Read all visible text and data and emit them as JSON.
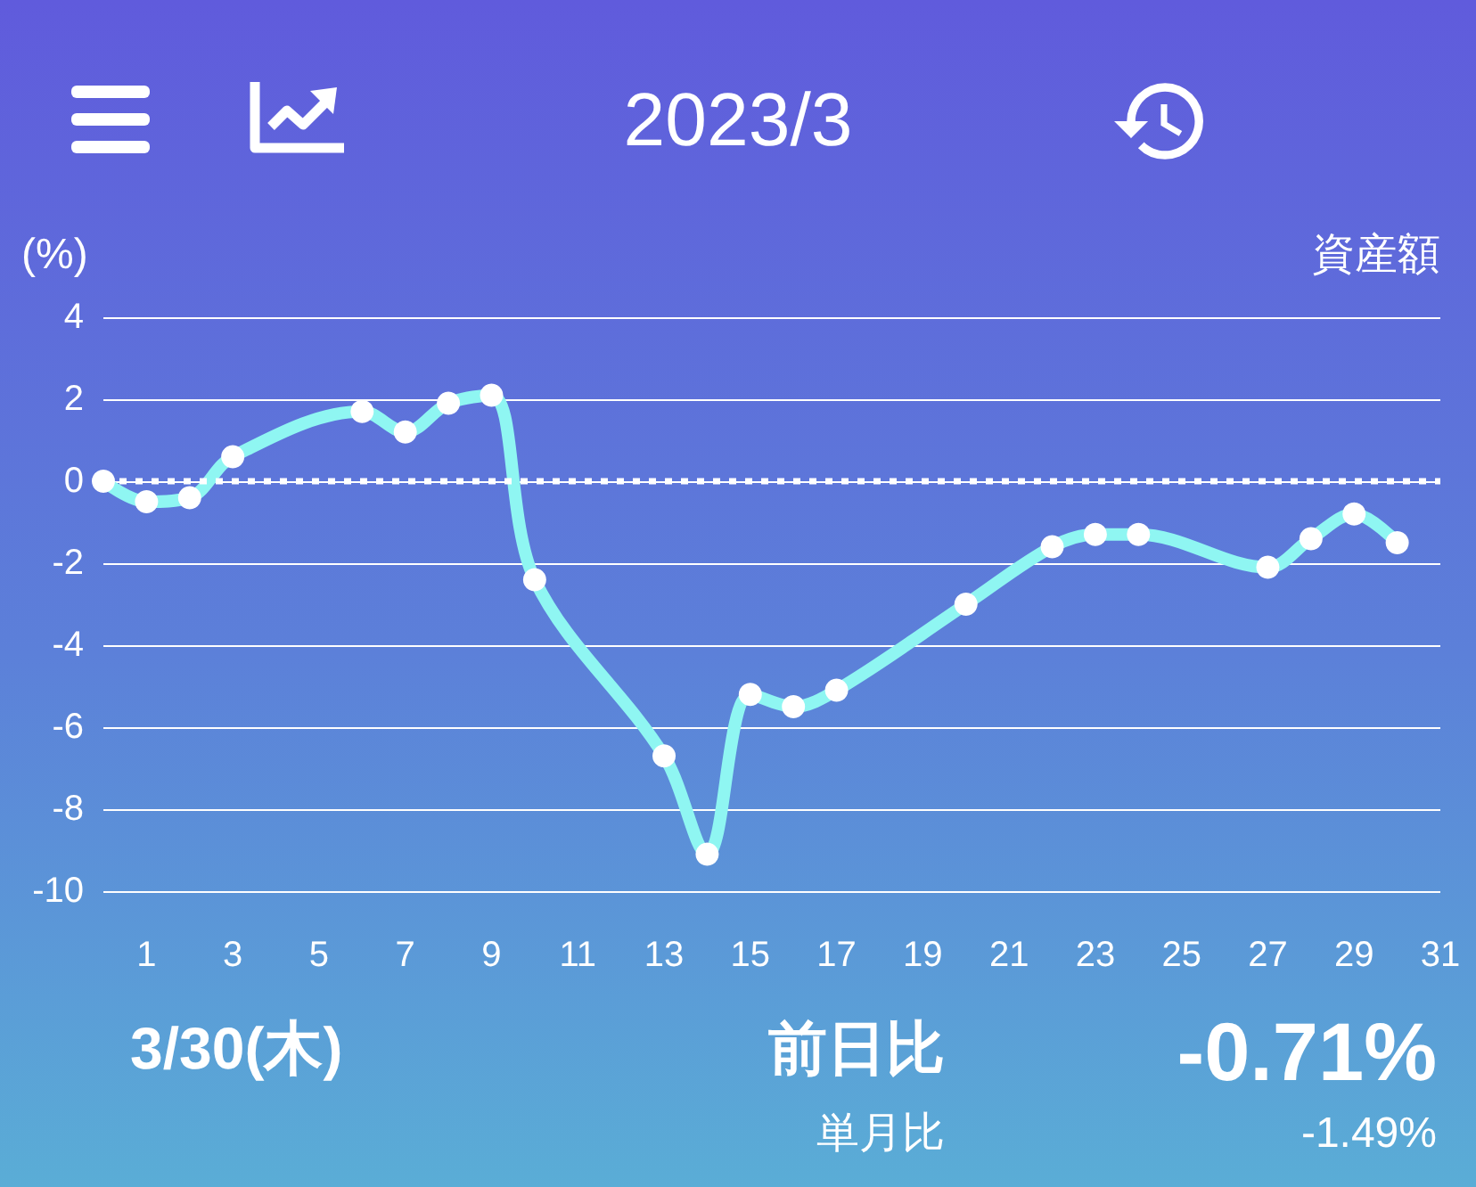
{
  "chart_data": {
    "type": "line",
    "title": "2023/3",
    "ylabel": "(%)",
    "annotations": [
      "資産額",
      "3/30(木)",
      "前日比",
      "-0.71%",
      "単月比",
      "-1.49%"
    ],
    "x": [
      0,
      1,
      2,
      3,
      6,
      7,
      8,
      9,
      10,
      13,
      14,
      15,
      16,
      17,
      20,
      22,
      23,
      24,
      27,
      28,
      29,
      30
    ],
    "series": [
      {
        "color": "#8ff6f2",
        "values": [
          0,
          -0.5,
          -0.4,
          0.6,
          1.7,
          1.2,
          1.9,
          2.1,
          -2.4,
          -6.7,
          -9.1,
          -5.2,
          -5.5,
          -5.1,
          -3.0,
          -1.6,
          -1.3,
          -1.3,
          -2.1,
          -1.4,
          -0.8,
          -1.5
        ]
      }
    ],
    "xlim": [
      0,
      31
    ],
    "xticks": [
      1,
      3,
      5,
      7,
      9,
      11,
      13,
      15,
      17,
      19,
      21,
      23,
      25,
      27,
      29,
      31
    ],
    "ylim": [
      -10,
      4
    ],
    "yticks": [
      4,
      2,
      0,
      -2,
      -4,
      -6,
      -8,
      -10
    ],
    "ref_lines": [
      {
        "axis": "y",
        "value": 0,
        "color": "#ffffff",
        "line_style": "dotted"
      }
    ],
    "grid": "y",
    "marker": "circle",
    "line_style": "solid"
  }
}
